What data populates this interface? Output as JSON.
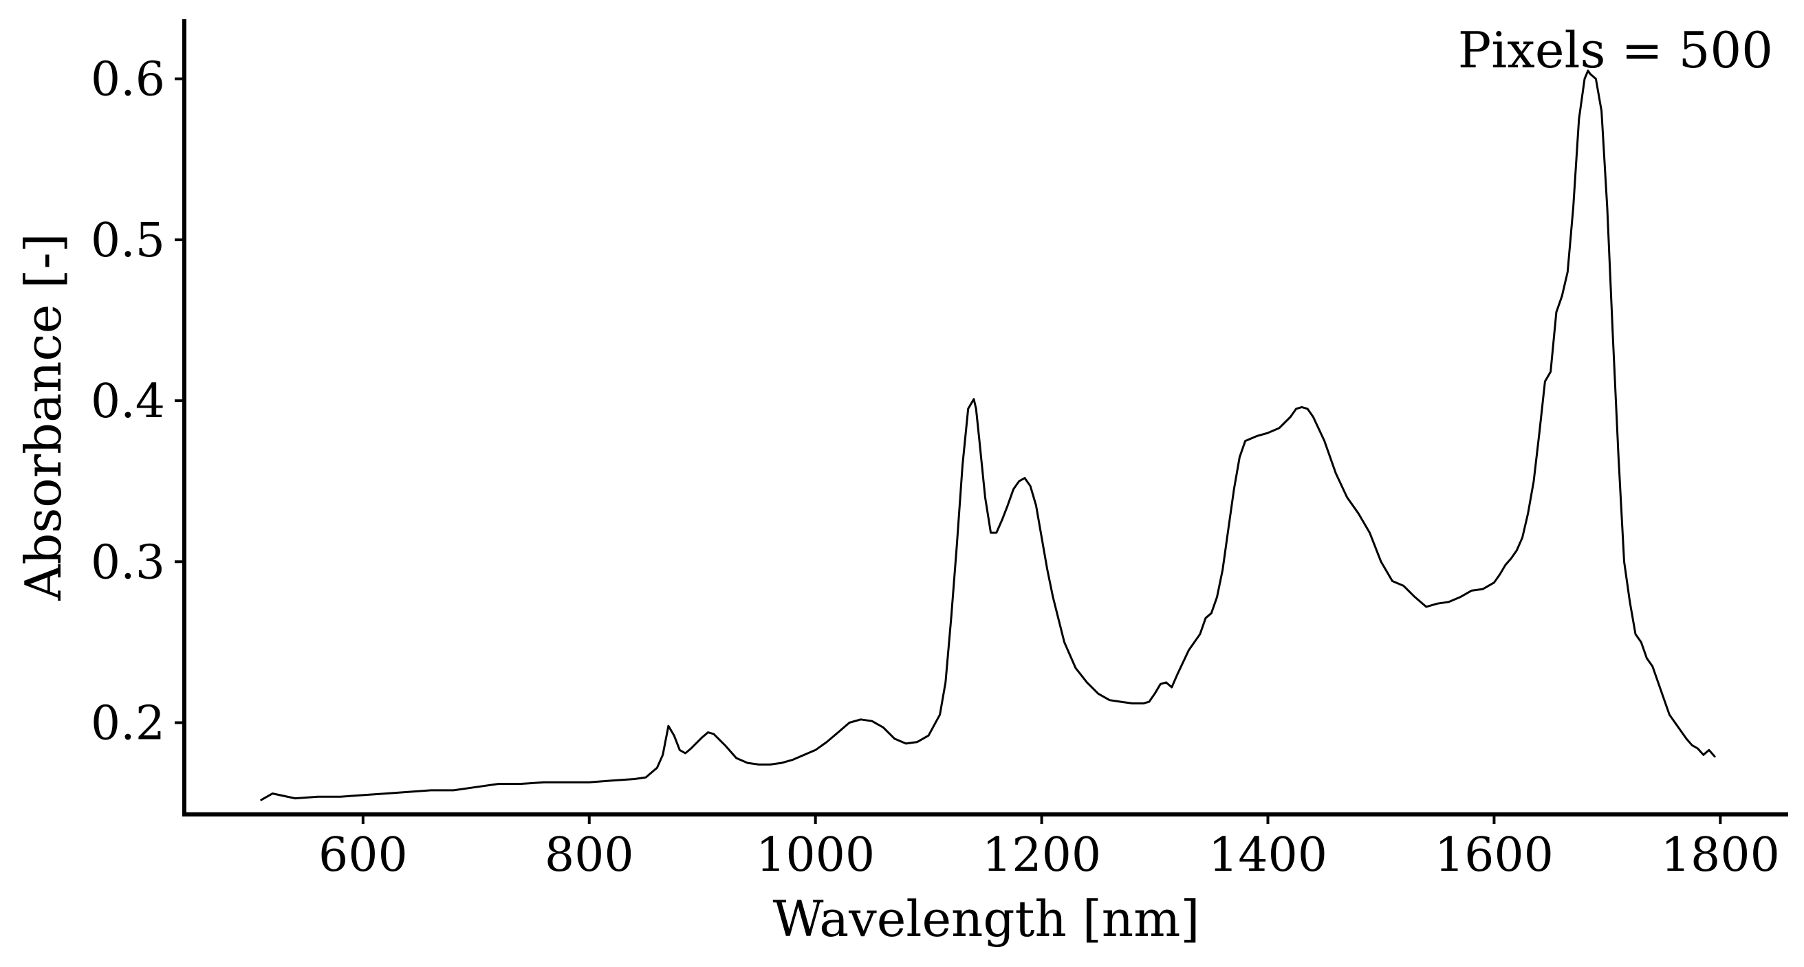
{
  "chart_data": {
    "type": "line",
    "title": "",
    "xlabel": "Wavelength [nm]",
    "ylabel": "Absorbance [-]",
    "annotation": "Pixels = 500",
    "xlim": [
      442,
      1860
    ],
    "ylim": [
      0.143,
      0.637
    ],
    "xticks": [
      600,
      800,
      1000,
      1200,
      1400,
      1600,
      1800
    ],
    "yticks": [
      0.2,
      0.3,
      0.4,
      0.5,
      0.6
    ],
    "xtick_labels": [
      "600",
      "800",
      "1000",
      "1200",
      "1400",
      "1600",
      "1800"
    ],
    "ytick_labels": [
      "0.2",
      "0.3",
      "0.4",
      "0.5",
      "0.6"
    ],
    "grid": false,
    "line_color": "#000000",
    "series": [
      {
        "x": [
          510,
          520,
          540,
          560,
          580,
          600,
          620,
          640,
          660,
          680,
          700,
          720,
          740,
          760,
          780,
          800,
          820,
          840,
          850,
          860,
          865,
          870,
          875,
          880,
          885,
          890,
          900,
          905,
          910,
          920,
          930,
          940,
          950,
          960,
          970,
          980,
          1000,
          1010,
          1020,
          1030,
          1040,
          1050,
          1060,
          1070,
          1080,
          1090,
          1100,
          1110,
          1115,
          1120,
          1125,
          1130,
          1135,
          1140,
          1142,
          1145,
          1150,
          1155,
          1160,
          1165,
          1170,
          1175,
          1180,
          1185,
          1190,
          1195,
          1200,
          1205,
          1210,
          1220,
          1230,
          1240,
          1250,
          1260,
          1270,
          1280,
          1290,
          1295,
          1300,
          1305,
          1310,
          1315,
          1320,
          1330,
          1340,
          1345,
          1350,
          1355,
          1360,
          1365,
          1370,
          1375,
          1380,
          1390,
          1400,
          1410,
          1420,
          1425,
          1430,
          1435,
          1440,
          1450,
          1460,
          1470,
          1480,
          1490,
          1500,
          1510,
          1520,
          1530,
          1540,
          1550,
          1560,
          1570,
          1580,
          1590,
          1600,
          1605,
          1610,
          1615,
          1620,
          1625,
          1630,
          1635,
          1640,
          1645,
          1650,
          1655,
          1660,
          1665,
          1670,
          1675,
          1680,
          1683,
          1685,
          1690,
          1695,
          1700,
          1705,
          1710,
          1715,
          1720,
          1725,
          1730,
          1735,
          1740,
          1745,
          1750,
          1755,
          1760,
          1765,
          1770,
          1775,
          1780,
          1785,
          1790,
          1795
        ],
        "y": [
          0.152,
          0.156,
          0.153,
          0.154,
          0.154,
          0.155,
          0.156,
          0.157,
          0.158,
          0.158,
          0.16,
          0.162,
          0.162,
          0.163,
          0.163,
          0.163,
          0.164,
          0.165,
          0.166,
          0.172,
          0.18,
          0.198,
          0.192,
          0.183,
          0.181,
          0.184,
          0.191,
          0.194,
          0.193,
          0.186,
          0.178,
          0.175,
          0.174,
          0.174,
          0.175,
          0.177,
          0.183,
          0.188,
          0.194,
          0.2,
          0.202,
          0.201,
          0.197,
          0.19,
          0.187,
          0.188,
          0.192,
          0.205,
          0.225,
          0.265,
          0.31,
          0.36,
          0.395,
          0.401,
          0.395,
          0.375,
          0.34,
          0.318,
          0.318,
          0.326,
          0.335,
          0.345,
          0.35,
          0.352,
          0.347,
          0.335,
          0.315,
          0.295,
          0.278,
          0.25,
          0.234,
          0.225,
          0.218,
          0.214,
          0.213,
          0.212,
          0.212,
          0.213,
          0.218,
          0.224,
          0.225,
          0.222,
          0.23,
          0.245,
          0.255,
          0.265,
          0.268,
          0.278,
          0.295,
          0.32,
          0.345,
          0.365,
          0.375,
          0.378,
          0.38,
          0.383,
          0.39,
          0.395,
          0.396,
          0.395,
          0.39,
          0.375,
          0.355,
          0.34,
          0.33,
          0.318,
          0.3,
          0.288,
          0.285,
          0.278,
          0.272,
          0.274,
          0.275,
          0.278,
          0.282,
          0.283,
          0.287,
          0.292,
          0.298,
          0.302,
          0.307,
          0.315,
          0.33,
          0.35,
          0.38,
          0.412,
          0.418,
          0.455,
          0.465,
          0.48,
          0.52,
          0.575,
          0.6,
          0.605,
          0.603,
          0.6,
          0.58,
          0.52,
          0.44,
          0.365,
          0.3,
          0.275,
          0.255,
          0.25,
          0.24,
          0.235,
          0.225,
          0.215,
          0.205,
          0.2,
          0.195,
          0.19,
          0.186,
          0.184,
          0.18,
          0.183,
          0.179
        ]
      }
    ]
  }
}
